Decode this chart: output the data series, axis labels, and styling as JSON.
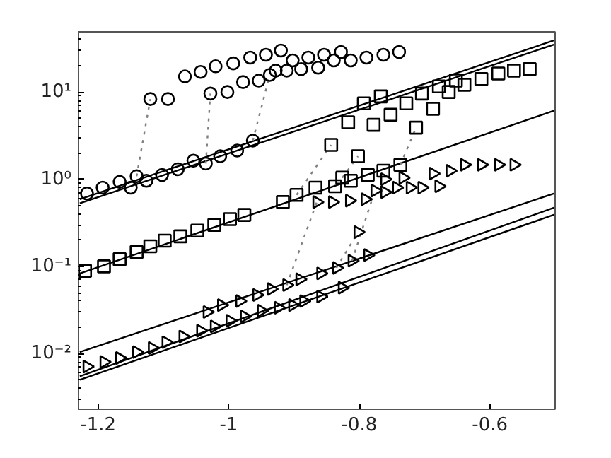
{
  "chart_data": {
    "type": "scatter",
    "log": "y",
    "grid": false,
    "xlim": [
      -1.23,
      -0.5
    ],
    "ylim": [
      0.0023,
      49
    ],
    "xticks": [
      -1.2,
      -1,
      -0.8,
      -0.6
    ],
    "yticks": [
      {
        "value": 0.01,
        "label": "10⁻²"
      },
      {
        "value": 0.1,
        "label": "10⁻¹"
      },
      {
        "value": 1,
        "label": "10⁰"
      },
      {
        "value": 10,
        "label": "10¹"
      }
    ],
    "series": [
      {
        "type": "line",
        "color": "#000000",
        "line_style": "solid",
        "x": [
          -1.228,
          -0.502
        ],
        "values": [
          0.59,
          39
        ]
      },
      {
        "type": "line",
        "color": "#000000",
        "line_style": "solid",
        "x": [
          -1.228,
          -0.502
        ],
        "values": [
          0.53,
          35
        ]
      },
      {
        "type": "line",
        "color": "#000000",
        "line_style": "solid",
        "x": [
          -1.228,
          -0.502
        ],
        "values": [
          0.083,
          6.1
        ]
      },
      {
        "type": "line",
        "color": "#000000",
        "line_style": "solid",
        "x": [
          -1.228,
          -0.502
        ],
        "values": [
          0.0104,
          0.685
        ]
      },
      {
        "type": "line",
        "color": "#000000",
        "line_style": "solid",
        "x": [
          -1.228,
          -0.502
        ],
        "values": [
          0.0055,
          0.47
        ]
      },
      {
        "type": "line",
        "color": "#000000",
        "line_style": "solid",
        "x": [
          -1.228,
          -0.502
        ],
        "values": [
          0.005,
          0.39
        ]
      },
      {
        "type": "line",
        "color": "#808080",
        "line_style": "dotted",
        "x": [
          -1.141,
          -1.12
        ],
        "values": [
          1.08,
          8.3
        ]
      },
      {
        "type": "line",
        "color": "#808080",
        "line_style": "dotted",
        "x": [
          -1.035,
          -1.028
        ],
        "values": [
          1.51,
          9.6
        ]
      },
      {
        "type": "line",
        "color": "#808080",
        "line_style": "dotted",
        "x": [
          -0.963,
          -0.937
        ],
        "values": [
          2.77,
          15.7
        ]
      },
      {
        "type": "line",
        "color": "#808080",
        "line_style": "dotted",
        "x": [
          -0.896,
          -0.843
        ],
        "values": [
          0.66,
          2.47
        ]
      },
      {
        "type": "line",
        "color": "#808080",
        "line_style": "dotted",
        "x": [
          -0.826,
          -0.802
        ],
        "values": [
          1.04,
          1.83
        ]
      },
      {
        "type": "line",
        "color": "#808080",
        "line_style": "dotted",
        "x": [
          -0.737,
          -0.713
        ],
        "values": [
          1.46,
          3.9
        ]
      },
      {
        "type": "line",
        "color": "#808080",
        "line_style": "dotted",
        "x": [
          -0.911,
          -0.865
        ],
        "values": [
          0.061,
          0.547
        ]
      },
      {
        "type": "line",
        "color": "#808080",
        "line_style": "dotted",
        "x": [
          -0.835,
          -0.802
        ],
        "values": [
          0.096,
          0.247
        ]
      },
      {
        "type": "line",
        "color": "#808080",
        "line_style": "dotted",
        "x": [
          -0.811,
          -0.776
        ],
        "values": [
          0.116,
          0.74
        ]
      },
      {
        "marker": "circle",
        "color": "#000000",
        "x": [
          -1.217,
          -1.193,
          -1.167,
          -1.15,
          -1.141,
          -1.126,
          -1.102,
          -1.078,
          -1.054,
          -1.035,
          -1.013,
          -0.987,
          -0.963
        ],
        "values": [
          0.685,
          0.8,
          0.93,
          0.8,
          1.08,
          0.96,
          1.12,
          1.3,
          1.63,
          1.51,
          1.83,
          2.13,
          2.77
        ]
      },
      {
        "marker": "circle",
        "color": "#000000",
        "x": [
          -1.12,
          -1.093,
          -1.067,
          -1.043,
          -1.028,
          -1.02,
          -1.002,
          -0.993,
          -0.978,
          -0.967,
          -0.954,
          -0.943,
          -0.937,
          -0.928,
          -0.92,
          -0.911,
          -0.902,
          -0.889,
          -0.878,
          -0.863,
          -0.854,
          -0.839,
          -0.828,
          -0.813,
          -0.789,
          -0.763,
          -0.739
        ],
        "values": [
          8.3,
          8.3,
          15.1,
          17.0,
          9.6,
          19.7,
          10.0,
          21.3,
          13.0,
          24.8,
          13.5,
          26.7,
          15.7,
          17.6,
          29.9,
          17.6,
          23,
          18.3,
          24.8,
          19,
          26.7,
          23,
          28.8,
          23,
          24.8,
          26.7,
          28.8
        ]
      },
      {
        "marker": "square",
        "color": "#000000",
        "x": [
          -1.22,
          -1.191,
          -1.167,
          -1.141,
          -1.12,
          -1.098,
          -1.074,
          -1.048,
          -1.022,
          -0.998,
          -0.976,
          -0.917,
          -0.896,
          -0.867,
          -0.837,
          -0.826,
          -0.813,
          -0.787,
          -0.763,
          -0.737
        ],
        "values": [
          0.089,
          0.1,
          0.121,
          0.146,
          0.17,
          0.197,
          0.221,
          0.257,
          0.299,
          0.348,
          0.389,
          0.547,
          0.66,
          0.8,
          0.83,
          1.04,
          0.96,
          1.12,
          1.25,
          1.46
        ]
      },
      {
        "marker": "square",
        "color": "#000000",
        "x": [
          -0.843,
          -0.817,
          -0.802,
          -0.793,
          -0.778,
          -0.767,
          -0.752,
          -0.728,
          -0.713,
          -0.704,
          -0.687,
          -0.678,
          -0.663,
          -0.652,
          -0.639,
          -0.613,
          -0.587,
          -0.563,
          -0.539
        ],
        "values": [
          2.47,
          4.5,
          1.83,
          7.4,
          4.2,
          8.9,
          5.5,
          7.4,
          3.9,
          9.6,
          6.4,
          11.6,
          10,
          13.5,
          12.1,
          14.1,
          16.3,
          17.6,
          18.3
        ]
      },
      {
        "marker": "triangle",
        "color": "#000000",
        "x": [
          -1.217,
          -1.191,
          -1.167,
          -1.141,
          -1.117,
          -1.096,
          -1.07,
          -1.043,
          -1.022,
          -0.998,
          -0.976,
          -0.95,
          -0.924,
          -0.902,
          -0.885,
          -0.859,
          -0.826
        ],
        "values": [
          0.0071,
          0.008,
          0.0089,
          0.0104,
          0.0116,
          0.0135,
          0.0157,
          0.0183,
          0.0205,
          0.0238,
          0.0267,
          0.031,
          0.0335,
          0.036,
          0.04,
          0.045,
          0.057
        ]
      },
      {
        "marker": "triangle",
        "color": "#000000",
        "x": [
          -1.033,
          -1.011,
          -0.983,
          -0.957,
          -0.935,
          -0.911,
          -0.891,
          -0.859,
          -0.835,
          -0.811,
          -0.787
        ],
        "values": [
          0.03,
          0.036,
          0.04,
          0.047,
          0.055,
          0.061,
          0.071,
          0.083,
          0.096,
          0.116,
          0.135
        ]
      },
      {
        "marker": "triangle",
        "color": "#000000",
        "x": [
          -0.802,
          -0.865,
          -0.841,
          -0.815,
          -0.791,
          -0.776,
          -0.761,
          -0.761,
          -0.743,
          -0.733,
          -0.722,
          -0.704,
          -0.687,
          -0.678,
          -0.661,
          -0.639,
          -0.613,
          -0.587,
          -0.563
        ],
        "values": [
          0.247,
          0.547,
          0.547,
          0.567,
          0.59,
          0.74,
          1.0,
          0.71,
          0.8,
          1.04,
          0.8,
          0.8,
          1.16,
          0.83,
          1.25,
          1.46,
          1.46,
          1.46,
          1.46
        ]
      }
    ]
  }
}
